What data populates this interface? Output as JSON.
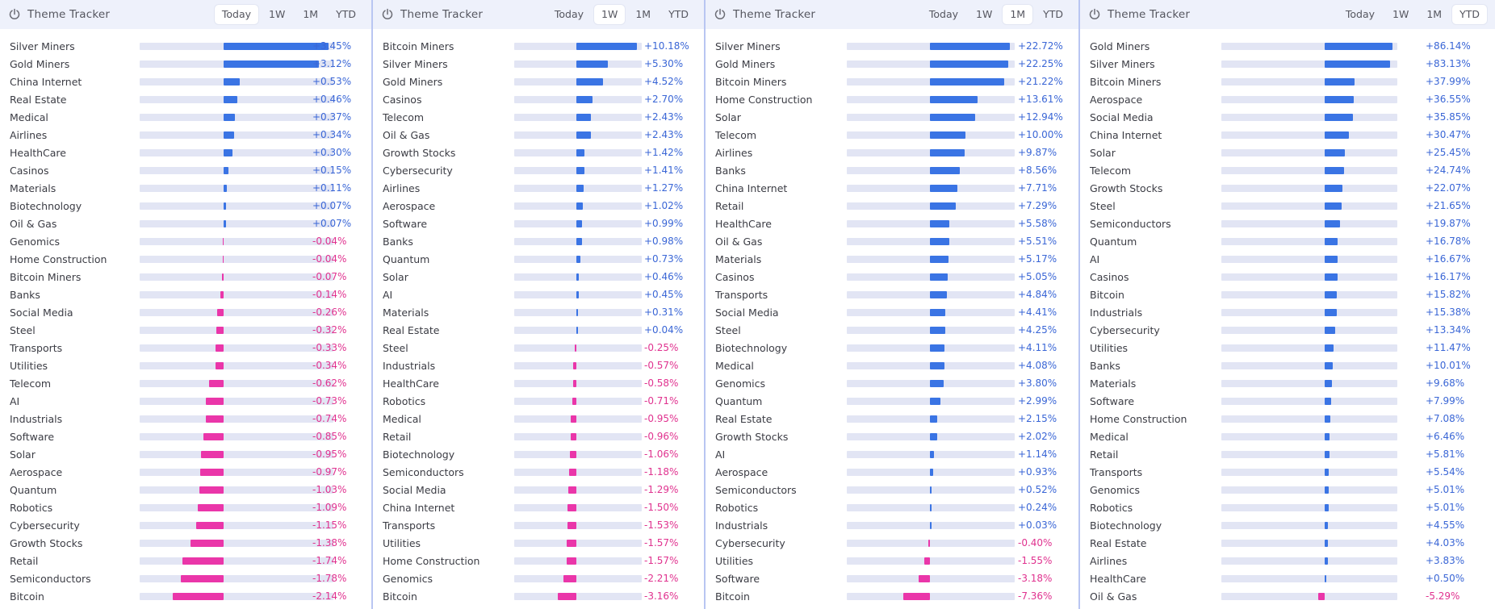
{
  "colors": {
    "positive": "#3a74e4",
    "negative": "#ea36a9",
    "track": "#e2e5f4",
    "header_bg": "#eef1fb"
  },
  "panels": [
    {
      "title": "Theme Tracker",
      "tabs": [
        "Today",
        "1W",
        "1M",
        "YTD"
      ],
      "active_tab": "Today",
      "max_abs": 3.45,
      "rows": [
        {
          "name": "Silver Miners",
          "value": 3.45,
          "label": "+3.45%"
        },
        {
          "name": "Gold Miners",
          "value": 3.12,
          "label": "+3.12%"
        },
        {
          "name": "China Internet",
          "value": 0.53,
          "label": "+0.53%"
        },
        {
          "name": "Real Estate",
          "value": 0.46,
          "label": "+0.46%"
        },
        {
          "name": "Medical",
          "value": 0.37,
          "label": "+0.37%"
        },
        {
          "name": "Airlines",
          "value": 0.34,
          "label": "+0.34%"
        },
        {
          "name": "HealthCare",
          "value": 0.3,
          "label": "+0.30%"
        },
        {
          "name": "Casinos",
          "value": 0.15,
          "label": "+0.15%"
        },
        {
          "name": "Materials",
          "value": 0.11,
          "label": "+0.11%"
        },
        {
          "name": "Biotechnology",
          "value": 0.07,
          "label": "+0.07%"
        },
        {
          "name": "Oil & Gas",
          "value": 0.07,
          "label": "+0.07%"
        },
        {
          "name": "Genomics",
          "value": -0.04,
          "label": "-0.04%"
        },
        {
          "name": "Home Construction",
          "value": -0.04,
          "label": "-0.04%"
        },
        {
          "name": "Bitcoin Miners",
          "value": -0.07,
          "label": "-0.07%"
        },
        {
          "name": "Banks",
          "value": -0.14,
          "label": "-0.14%"
        },
        {
          "name": "Social Media",
          "value": -0.26,
          "label": "-0.26%"
        },
        {
          "name": "Steel",
          "value": -0.32,
          "label": "-0.32%"
        },
        {
          "name": "Transports",
          "value": -0.33,
          "label": "-0.33%"
        },
        {
          "name": "Utilities",
          "value": -0.34,
          "label": "-0.34%"
        },
        {
          "name": "Telecom",
          "value": -0.62,
          "label": "-0.62%"
        },
        {
          "name": "AI",
          "value": -0.73,
          "label": "-0.73%"
        },
        {
          "name": "Industrials",
          "value": -0.74,
          "label": "-0.74%"
        },
        {
          "name": "Software",
          "value": -0.85,
          "label": "-0.85%"
        },
        {
          "name": "Solar",
          "value": -0.95,
          "label": "-0.95%"
        },
        {
          "name": "Aerospace",
          "value": -0.97,
          "label": "-0.97%"
        },
        {
          "name": "Quantum",
          "value": -1.03,
          "label": "-1.03%"
        },
        {
          "name": "Robotics",
          "value": -1.09,
          "label": "-1.09%"
        },
        {
          "name": "Cybersecurity",
          "value": -1.15,
          "label": "-1.15%"
        },
        {
          "name": "Growth Stocks",
          "value": -1.38,
          "label": "-1.38%"
        },
        {
          "name": "Retail",
          "value": -1.74,
          "label": "-1.74%"
        },
        {
          "name": "Semiconductors",
          "value": -1.78,
          "label": "-1.78%"
        },
        {
          "name": "Bitcoin",
          "value": -2.14,
          "label": "-2.14%"
        }
      ]
    },
    {
      "title": "Theme Tracker",
      "tabs": [
        "Today",
        "1W",
        "1M",
        "YTD"
      ],
      "active_tab": "1W",
      "max_abs": 10.18,
      "rows": [
        {
          "name": "Bitcoin Miners",
          "value": 10.18,
          "label": "+10.18%"
        },
        {
          "name": "Silver Miners",
          "value": 5.3,
          "label": "+5.30%"
        },
        {
          "name": "Gold Miners",
          "value": 4.52,
          "label": "+4.52%"
        },
        {
          "name": "Casinos",
          "value": 2.7,
          "label": "+2.70%"
        },
        {
          "name": "Telecom",
          "value": 2.43,
          "label": "+2.43%"
        },
        {
          "name": "Oil & Gas",
          "value": 2.43,
          "label": "+2.43%"
        },
        {
          "name": "Growth Stocks",
          "value": 1.42,
          "label": "+1.42%"
        },
        {
          "name": "Cybersecurity",
          "value": 1.41,
          "label": "+1.41%"
        },
        {
          "name": "Airlines",
          "value": 1.27,
          "label": "+1.27%"
        },
        {
          "name": "Aerospace",
          "value": 1.02,
          "label": "+1.02%"
        },
        {
          "name": "Software",
          "value": 0.99,
          "label": "+0.99%"
        },
        {
          "name": "Banks",
          "value": 0.98,
          "label": "+0.98%"
        },
        {
          "name": "Quantum",
          "value": 0.73,
          "label": "+0.73%"
        },
        {
          "name": "Solar",
          "value": 0.46,
          "label": "+0.46%"
        },
        {
          "name": "AI",
          "value": 0.45,
          "label": "+0.45%"
        },
        {
          "name": "Materials",
          "value": 0.31,
          "label": "+0.31%"
        },
        {
          "name": "Real Estate",
          "value": 0.04,
          "label": "+0.04%"
        },
        {
          "name": "Steel",
          "value": -0.25,
          "label": "-0.25%"
        },
        {
          "name": "Industrials",
          "value": -0.57,
          "label": "-0.57%"
        },
        {
          "name": "HealthCare",
          "value": -0.58,
          "label": "-0.58%"
        },
        {
          "name": "Robotics",
          "value": -0.71,
          "label": "-0.71%"
        },
        {
          "name": "Medical",
          "value": -0.95,
          "label": "-0.95%"
        },
        {
          "name": "Retail",
          "value": -0.96,
          "label": "-0.96%"
        },
        {
          "name": "Biotechnology",
          "value": -1.06,
          "label": "-1.06%"
        },
        {
          "name": "Semiconductors",
          "value": -1.18,
          "label": "-1.18%"
        },
        {
          "name": "Social Media",
          "value": -1.29,
          "label": "-1.29%"
        },
        {
          "name": "China Internet",
          "value": -1.5,
          "label": "-1.50%"
        },
        {
          "name": "Transports",
          "value": -1.53,
          "label": "-1.53%"
        },
        {
          "name": "Utilities",
          "value": -1.57,
          "label": "-1.57%"
        },
        {
          "name": "Home Construction",
          "value": -1.57,
          "label": "-1.57%"
        },
        {
          "name": "Genomics",
          "value": -2.21,
          "label": "-2.21%"
        },
        {
          "name": "Bitcoin",
          "value": -3.16,
          "label": "-3.16%"
        }
      ]
    },
    {
      "title": "Theme Tracker",
      "tabs": [
        "Today",
        "1W",
        "1M",
        "YTD"
      ],
      "active_tab": "1M",
      "max_abs": 22.72,
      "rows": [
        {
          "name": "Silver Miners",
          "value": 22.72,
          "label": "+22.72%"
        },
        {
          "name": "Gold Miners",
          "value": 22.25,
          "label": "+22.25%"
        },
        {
          "name": "Bitcoin Miners",
          "value": 21.22,
          "label": "+21.22%"
        },
        {
          "name": "Home Construction",
          "value": 13.61,
          "label": "+13.61%"
        },
        {
          "name": "Solar",
          "value": 12.94,
          "label": "+12.94%"
        },
        {
          "name": "Telecom",
          "value": 10.0,
          "label": "+10.00%"
        },
        {
          "name": "Airlines",
          "value": 9.87,
          "label": "+9.87%"
        },
        {
          "name": "Banks",
          "value": 8.56,
          "label": "+8.56%"
        },
        {
          "name": "China Internet",
          "value": 7.71,
          "label": "+7.71%"
        },
        {
          "name": "Retail",
          "value": 7.29,
          "label": "+7.29%"
        },
        {
          "name": "HealthCare",
          "value": 5.58,
          "label": "+5.58%"
        },
        {
          "name": "Oil & Gas",
          "value": 5.51,
          "label": "+5.51%"
        },
        {
          "name": "Materials",
          "value": 5.17,
          "label": "+5.17%"
        },
        {
          "name": "Casinos",
          "value": 5.05,
          "label": "+5.05%"
        },
        {
          "name": "Transports",
          "value": 4.84,
          "label": "+4.84%"
        },
        {
          "name": "Social Media",
          "value": 4.41,
          "label": "+4.41%"
        },
        {
          "name": "Steel",
          "value": 4.25,
          "label": "+4.25%"
        },
        {
          "name": "Biotechnology",
          "value": 4.11,
          "label": "+4.11%"
        },
        {
          "name": "Medical",
          "value": 4.08,
          "label": "+4.08%"
        },
        {
          "name": "Genomics",
          "value": 3.8,
          "label": "+3.80%"
        },
        {
          "name": "Quantum",
          "value": 2.99,
          "label": "+2.99%"
        },
        {
          "name": "Real Estate",
          "value": 2.15,
          "label": "+2.15%"
        },
        {
          "name": "Growth Stocks",
          "value": 2.02,
          "label": "+2.02%"
        },
        {
          "name": "AI",
          "value": 1.14,
          "label": "+1.14%"
        },
        {
          "name": "Aerospace",
          "value": 0.93,
          "label": "+0.93%"
        },
        {
          "name": "Semiconductors",
          "value": 0.52,
          "label": "+0.52%"
        },
        {
          "name": "Robotics",
          "value": 0.24,
          "label": "+0.24%"
        },
        {
          "name": "Industrials",
          "value": 0.03,
          "label": "+0.03%"
        },
        {
          "name": "Cybersecurity",
          "value": -0.4,
          "label": "-0.40%"
        },
        {
          "name": "Utilities",
          "value": -1.55,
          "label": "-1.55%"
        },
        {
          "name": "Software",
          "value": -3.18,
          "label": "-3.18%"
        },
        {
          "name": "Bitcoin",
          "value": -7.36,
          "label": "-7.36%"
        }
      ]
    },
    {
      "title": "Theme Tracker",
      "tabs": [
        "Today",
        "1W",
        "1M",
        "YTD"
      ],
      "active_tab": "YTD",
      "max_abs": 86.14,
      "rows": [
        {
          "name": "Gold Miners",
          "value": 86.14,
          "label": "+86.14%"
        },
        {
          "name": "Silver Miners",
          "value": 83.13,
          "label": "+83.13%"
        },
        {
          "name": "Bitcoin Miners",
          "value": 37.99,
          "label": "+37.99%"
        },
        {
          "name": "Aerospace",
          "value": 36.55,
          "label": "+36.55%"
        },
        {
          "name": "Social Media",
          "value": 35.85,
          "label": "+35.85%"
        },
        {
          "name": "China Internet",
          "value": 30.47,
          "label": "+30.47%"
        },
        {
          "name": "Solar",
          "value": 25.45,
          "label": "+25.45%"
        },
        {
          "name": "Telecom",
          "value": 24.74,
          "label": "+24.74%"
        },
        {
          "name": "Growth Stocks",
          "value": 22.07,
          "label": "+22.07%"
        },
        {
          "name": "Steel",
          "value": 21.65,
          "label": "+21.65%"
        },
        {
          "name": "Semiconductors",
          "value": 19.87,
          "label": "+19.87%"
        },
        {
          "name": "Quantum",
          "value": 16.78,
          "label": "+16.78%"
        },
        {
          "name": "AI",
          "value": 16.67,
          "label": "+16.67%"
        },
        {
          "name": "Casinos",
          "value": 16.17,
          "label": "+16.17%"
        },
        {
          "name": "Bitcoin",
          "value": 15.82,
          "label": "+15.82%"
        },
        {
          "name": "Industrials",
          "value": 15.38,
          "label": "+15.38%"
        },
        {
          "name": "Cybersecurity",
          "value": 13.34,
          "label": "+13.34%"
        },
        {
          "name": "Utilities",
          "value": 11.47,
          "label": "+11.47%"
        },
        {
          "name": "Banks",
          "value": 10.01,
          "label": "+10.01%"
        },
        {
          "name": "Materials",
          "value": 9.68,
          "label": "+9.68%"
        },
        {
          "name": "Software",
          "value": 7.99,
          "label": "+7.99%"
        },
        {
          "name": "Home Construction",
          "value": 7.08,
          "label": "+7.08%"
        },
        {
          "name": "Medical",
          "value": 6.46,
          "label": "+6.46%"
        },
        {
          "name": "Retail",
          "value": 5.81,
          "label": "+5.81%"
        },
        {
          "name": "Transports",
          "value": 5.54,
          "label": "+5.54%"
        },
        {
          "name": "Genomics",
          "value": 5.01,
          "label": "+5.01%"
        },
        {
          "name": "Robotics",
          "value": 5.01,
          "label": "+5.01%"
        },
        {
          "name": "Biotechnology",
          "value": 4.55,
          "label": "+4.55%"
        },
        {
          "name": "Real Estate",
          "value": 4.03,
          "label": "+4.03%"
        },
        {
          "name": "Airlines",
          "value": 3.83,
          "label": "+3.83%"
        },
        {
          "name": "HealthCare",
          "value": 0.5,
          "label": "+0.50%"
        },
        {
          "name": "Oil & Gas",
          "value": -5.29,
          "label": "-5.29%"
        }
      ]
    }
  ]
}
